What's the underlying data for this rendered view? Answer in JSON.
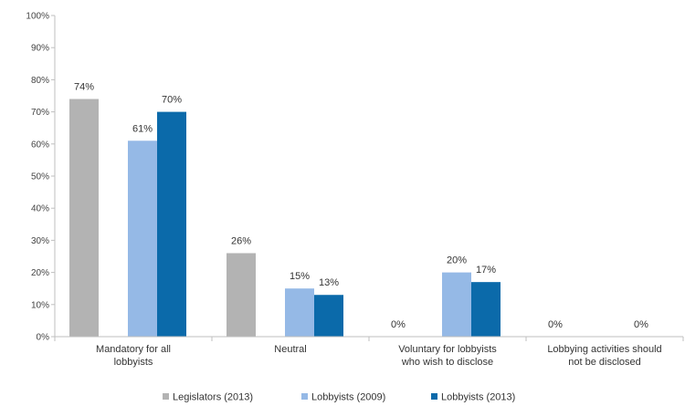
{
  "chart_data": {
    "type": "bar",
    "categories": [
      [
        "Mandatory for all",
        "lobbyists"
      ],
      [
        "Neutral"
      ],
      [
        "Voluntary for lobbyists",
        "who wish to disclose"
      ],
      [
        "Lobbying activities should",
        "not be disclosed"
      ]
    ],
    "series": [
      {
        "name": "Legislators (2013)",
        "color": "#b3b3b3",
        "values": [
          74,
          26,
          0,
          0
        ],
        "labels": [
          "74%",
          "26%",
          "0%",
          "0%"
        ]
      },
      {
        "name": "Lobbyists (2009)",
        "color": "#95b9e6",
        "values": [
          61,
          15,
          20,
          null
        ],
        "labels": [
          "61%",
          "15%",
          "20%",
          "0%"
        ]
      },
      {
        "name": "Lobbyists (2013)",
        "color": "#0b6aaa",
        "values": [
          70,
          13,
          17,
          null
        ],
        "labels": [
          "70%",
          "13%",
          "17%",
          ""
        ]
      }
    ],
    "yticks": [
      "0%",
      "10%",
      "20%",
      "30%",
      "40%",
      "50%",
      "60%",
      "70%",
      "80%",
      "90%",
      "100%"
    ],
    "ylim": [
      0,
      100
    ],
    "grid": false,
    "legend": "bottom",
    "title": "",
    "xlabel": "",
    "ylabel": ""
  }
}
